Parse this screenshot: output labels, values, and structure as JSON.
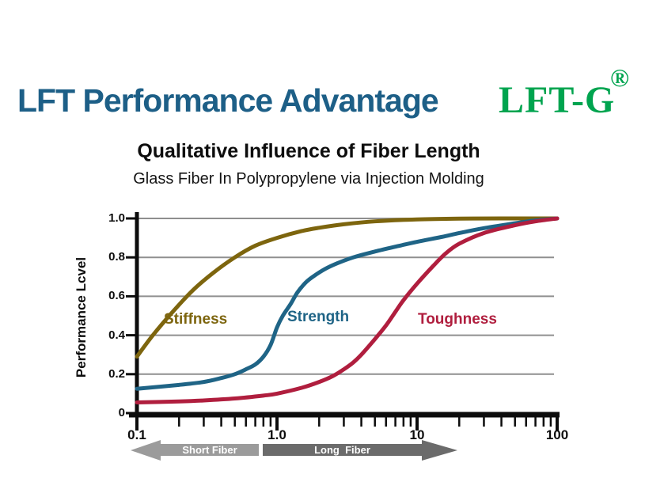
{
  "header": {
    "title": "LFT Performance Advantage",
    "title_color": "#1d5f87",
    "logo_text": "LFT-G",
    "logo_mark": "®",
    "logo_color": "#00a44f"
  },
  "chart_data": {
    "type": "line",
    "title": "Qualitative Influence of Fiber Length",
    "subtitle": "Glass Fiber In Polypropylene via Injection Molding",
    "xlabel": "",
    "ylabel": "Performance Lcvel",
    "x_scale": "log",
    "xlim": [
      0.1,
      100
    ],
    "ylim": [
      0,
      1.0
    ],
    "x_tick_values": [
      0.1,
      1,
      10,
      100
    ],
    "x_tick_labels": [
      "0.1",
      "1.0",
      "10",
      "100"
    ],
    "y_tick_values": [
      0,
      0.2,
      0.4,
      0.6,
      0.8,
      1.0
    ],
    "y_tick_labels": [
      "0",
      "0.2",
      "0.4",
      "0.6",
      "0.8",
      "1.0"
    ],
    "grid": "horizontal",
    "grid_color": "#8f8f8f",
    "axis_color": "#0c0c0c",
    "legend": "inline-labels",
    "series": [
      {
        "name": "Stiffness",
        "color": "#7d650e",
        "points": [
          [
            0.1,
            0.29
          ],
          [
            0.13,
            0.4
          ],
          [
            0.18,
            0.52
          ],
          [
            0.25,
            0.63
          ],
          [
            0.35,
            0.72
          ],
          [
            0.5,
            0.8
          ],
          [
            0.7,
            0.86
          ],
          [
            1.0,
            0.9
          ],
          [
            1.5,
            0.935
          ],
          [
            2,
            0.952
          ],
          [
            3,
            0.97
          ],
          [
            5,
            0.985
          ],
          [
            10,
            0.995
          ],
          [
            20,
            0.999
          ],
          [
            40,
            1.0
          ],
          [
            100,
            1.0
          ]
        ]
      },
      {
        "name": "Strength",
        "color": "#1f6486",
        "points": [
          [
            0.1,
            0.125
          ],
          [
            0.2,
            0.145
          ],
          [
            0.3,
            0.16
          ],
          [
            0.4,
            0.18
          ],
          [
            0.5,
            0.2
          ],
          [
            0.6,
            0.225
          ],
          [
            0.7,
            0.25
          ],
          [
            0.8,
            0.29
          ],
          [
            0.9,
            0.35
          ],
          [
            1.0,
            0.44
          ],
          [
            1.1,
            0.5
          ],
          [
            1.25,
            0.56
          ],
          [
            1.4,
            0.62
          ],
          [
            1.6,
            0.67
          ],
          [
            1.8,
            0.7
          ],
          [
            2.2,
            0.74
          ],
          [
            2.7,
            0.77
          ],
          [
            3.5,
            0.8
          ],
          [
            5,
            0.83
          ],
          [
            7,
            0.855
          ],
          [
            10,
            0.88
          ],
          [
            15,
            0.905
          ],
          [
            20,
            0.925
          ],
          [
            30,
            0.95
          ],
          [
            50,
            0.975
          ],
          [
            70,
            0.99
          ],
          [
            100,
            1.0
          ]
        ]
      },
      {
        "name": "Toughness",
        "color": "#b01e3e",
        "points": [
          [
            0.1,
            0.055
          ],
          [
            0.2,
            0.06
          ],
          [
            0.3,
            0.065
          ],
          [
            0.5,
            0.075
          ],
          [
            0.8,
            0.09
          ],
          [
            1,
            0.1
          ],
          [
            1.5,
            0.13
          ],
          [
            2,
            0.16
          ],
          [
            2.5,
            0.19
          ],
          [
            3,
            0.225
          ],
          [
            3.5,
            0.26
          ],
          [
            4,
            0.3
          ],
          [
            5,
            0.38
          ],
          [
            6,
            0.45
          ],
          [
            7,
            0.52
          ],
          [
            8,
            0.58
          ],
          [
            10,
            0.665
          ],
          [
            13,
            0.755
          ],
          [
            16,
            0.82
          ],
          [
            20,
            0.87
          ],
          [
            30,
            0.925
          ],
          [
            50,
            0.965
          ],
          [
            70,
            0.985
          ],
          [
            100,
            1.0
          ]
        ]
      }
    ]
  },
  "footer_arrows": {
    "left": {
      "label": "Short Fiber",
      "color": "#9b9b9b",
      "direction": "left"
    },
    "right": {
      "label": "Long  Fiber",
      "color": "#6b6b6b",
      "direction": "right"
    }
  }
}
